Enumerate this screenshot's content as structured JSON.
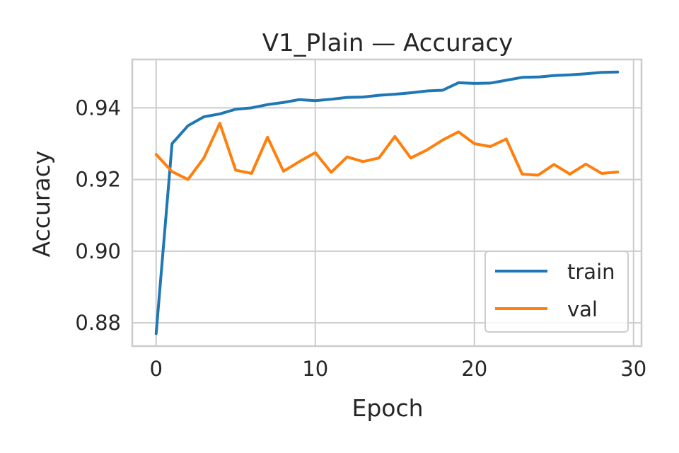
{
  "chart_data": {
    "type": "line",
    "title": "V1_Plain — Accuracy",
    "xlabel": "Epoch",
    "ylabel": "Accuracy",
    "xlim": [
      -1.5,
      30.5
    ],
    "ylim": [
      0.8735,
      0.9535
    ],
    "xticks": [
      0,
      10,
      20,
      30
    ],
    "xtick_labels": [
      "0",
      "10",
      "20",
      "30"
    ],
    "yticks": [
      0.88,
      0.9,
      0.92,
      0.94
    ],
    "ytick_labels": [
      "0.88",
      "0.90",
      "0.92",
      "0.94"
    ],
    "grid": true,
    "legend": "lower-right",
    "x": [
      0,
      1,
      2,
      3,
      4,
      5,
      6,
      7,
      8,
      9,
      10,
      11,
      12,
      13,
      14,
      15,
      16,
      17,
      18,
      19,
      20,
      21,
      22,
      23,
      24,
      25,
      26,
      27,
      28,
      29
    ],
    "series": [
      {
        "name": "train",
        "color": "#1f77b4",
        "values": [
          0.877,
          0.93,
          0.935,
          0.9375,
          0.9383,
          0.9396,
          0.94,
          0.9409,
          0.9415,
          0.9423,
          0.942,
          0.9424,
          0.9429,
          0.943,
          0.9435,
          0.9438,
          0.9442,
          0.9447,
          0.9449,
          0.947,
          0.9468,
          0.9469,
          0.9477,
          0.9485,
          0.9486,
          0.949,
          0.9492,
          0.9495,
          0.9499,
          0.95
        ]
      },
      {
        "name": "val",
        "color": "#ff7f0e",
        "values": [
          0.927,
          0.9222,
          0.92,
          0.926,
          0.9357,
          0.9226,
          0.9217,
          0.9318,
          0.9223,
          0.925,
          0.9275,
          0.922,
          0.9263,
          0.925,
          0.926,
          0.932,
          0.926,
          0.9282,
          0.931,
          0.9333,
          0.93,
          0.9292,
          0.9313,
          0.9215,
          0.9212,
          0.9242,
          0.9215,
          0.9243,
          0.9217,
          0.9221
        ]
      }
    ]
  }
}
